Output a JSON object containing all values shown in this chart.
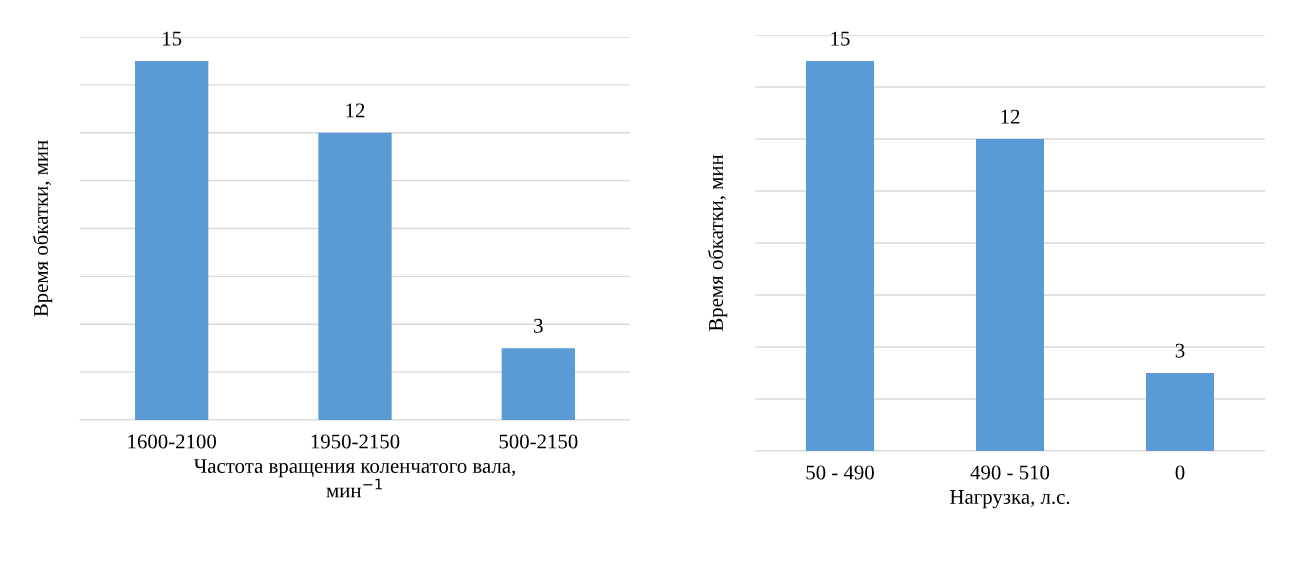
{
  "chart_data": [
    {
      "type": "bar",
      "categories": [
        "1600-2100",
        "1950-2150",
        "500-2150"
      ],
      "values": [
        15,
        12,
        3
      ],
      "color": "#5b9bd5",
      "xlabel": "Частота вращения коленчатого вала,\nмин$^{−1}$",
      "ylabel": "Время обкатки, мин",
      "ylim": [
        0,
        16
      ],
      "yticks": [
        {
          "value": 0,
          "label": null
        },
        {
          "value": 2,
          "label": null
        },
        {
          "value": 4,
          "label": null
        },
        {
          "value": 6,
          "label": null
        },
        {
          "value": 8,
          "label": null
        },
        {
          "value": 10,
          "label": null
        },
        {
          "value": 12,
          "label": null
        },
        {
          "value": 14,
          "label": null
        },
        {
          "value": 16,
          "label": null
        }
      ],
      "grid": "y",
      "data_labels": true,
      "tick_labels": "x",
      "legend": false
    },
    {
      "type": "bar",
      "categories": [
        "50 - 490",
        "490 - 510",
        "0"
      ],
      "values": [
        15,
        12,
        3
      ],
      "color": "#5b9bd5",
      "xlabel": "Нагрузка, л.с.",
      "ylabel": "Время обкатки, мин",
      "ylim": [
        0,
        16
      ],
      "yticks": [
        {
          "value": 0,
          "label": null
        },
        {
          "value": 2,
          "label": null
        },
        {
          "value": 4,
          "label": null
        },
        {
          "value": 6,
          "label": null
        },
        {
          "value": 8,
          "label": null
        },
        {
          "value": 10,
          "label": null
        },
        {
          "value": 12,
          "label": null
        },
        {
          "value": 14,
          "label": null
        },
        {
          "value": 16,
          "label": null
        }
      ],
      "grid": "y",
      "data_labels": true,
      "tick_labels": "x",
      "legend": false
    }
  ]
}
